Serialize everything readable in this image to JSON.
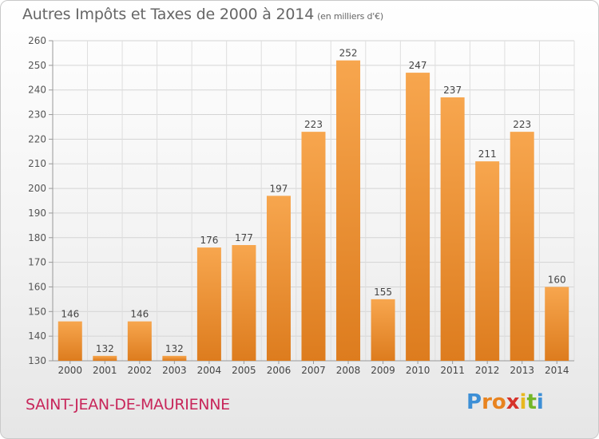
{
  "header": {
    "title": "Autres Impôts et Taxes de 2000 à 2014",
    "unit": "(en milliers d'€)"
  },
  "footer": {
    "commune": "SAINT-JEAN-DE-MAURIENNE",
    "logo_text": "Proxiti"
  },
  "colors": {
    "bar_top": "#f7a64e",
    "bar_bottom": "#dd7c1e",
    "commune_text": "#c8265a",
    "logo_letters": [
      "#3d8fd6",
      "#e8831f",
      "#e8831f",
      "#d6332b",
      "#e8b81f",
      "#73b628",
      "#3d8fd6"
    ]
  },
  "chart_data": {
    "type": "bar",
    "title": "Autres Impôts et Taxes de 2000 à 2014",
    "categories": [
      "2000",
      "2001",
      "2002",
      "2003",
      "2004",
      "2005",
      "2006",
      "2007",
      "2008",
      "2009",
      "2010",
      "2011",
      "2012",
      "2013",
      "2014"
    ],
    "values": [
      146,
      132,
      146,
      132,
      176,
      177,
      197,
      223,
      252,
      155,
      247,
      237,
      211,
      223,
      160
    ],
    "ylim": [
      130,
      260
    ],
    "yticks": [
      130,
      140,
      150,
      160,
      170,
      180,
      190,
      200,
      210,
      220,
      230,
      240,
      250,
      260
    ],
    "grid": true,
    "data_labels": true
  }
}
